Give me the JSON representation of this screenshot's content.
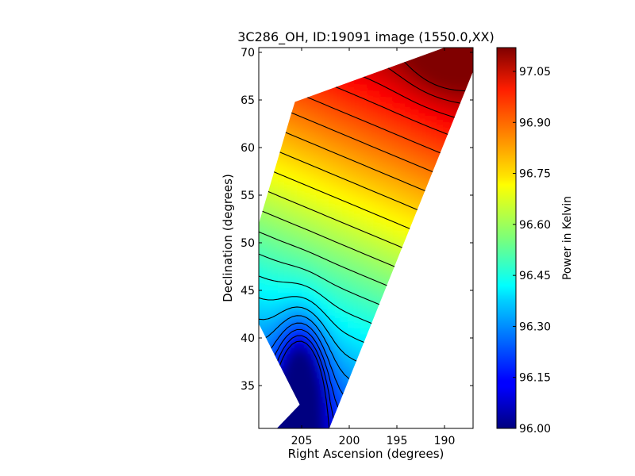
{
  "chart_data": [
    {
      "type": "heatmap",
      "title": "3C286_OH, ID:19091 image (1550.0,XX)",
      "xlabel": "Right Ascension (degrees)",
      "ylabel": "Declination (degrees)",
      "xlim": [
        209.5,
        187
      ],
      "ylim": [
        30.5,
        70.5
      ],
      "x_axis_reversed": true,
      "x_ticks": [
        205,
        200,
        195,
        190
      ],
      "x_tick_labels": [
        "205",
        "200",
        "195",
        "190"
      ],
      "y_ticks": [
        35,
        40,
        45,
        50,
        55,
        60,
        65,
        70
      ],
      "y_tick_labels": [
        "35",
        "40",
        "45",
        "50",
        "55",
        "60",
        "65",
        "70"
      ],
      "grid": false,
      "footprint_ra_dec": [
        [
          207.6,
          30.5
        ],
        [
          205.2,
          33
        ],
        [
          209.5,
          41.5
        ],
        [
          209.5,
          52
        ],
        [
          206.2,
          63.2
        ],
        [
          205.7,
          64.8
        ],
        [
          190,
          70.5
        ],
        [
          187,
          70.5
        ],
        [
          187,
          68
        ],
        [
          202.1,
          30.5
        ]
      ],
      "cold_spot": {
        "ra": 205.1,
        "dec": 34.0,
        "value": 96.05
      },
      "warm_spot": {
        "ra": 189.5,
        "dec": 70,
        "value": 97.1
      },
      "contour_lines": true
    },
    {
      "type": "colorbar",
      "label": "Power in Kelvin",
      "range": [
        96.0,
        97.12
      ],
      "ticks": [
        96.0,
        96.15,
        96.3,
        96.45,
        96.6,
        96.75,
        96.9,
        97.05
      ],
      "tick_labels": [
        "96.00",
        "96.15",
        "96.30",
        "96.45",
        "96.60",
        "96.75",
        "96.90",
        "97.05"
      ],
      "colormap": "jet"
    }
  ]
}
